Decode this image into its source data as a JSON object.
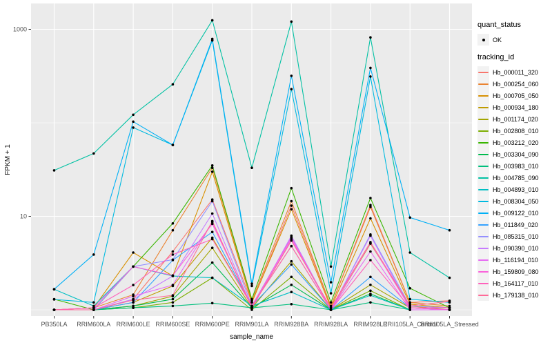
{
  "legend": {
    "quant_status_title": "quant_status",
    "quant_status_items": [
      {
        "label": "OK",
        "symbol": "point"
      }
    ],
    "tracking_id_title": "tracking_id",
    "key_fill": "#F2F2F2"
  },
  "chart_data": {
    "type": "line",
    "title": "",
    "xlabel": "sample_name",
    "ylabel": "FPKM + 1",
    "y_scale": "log10",
    "ylim": [
      0.85,
      1800
    ],
    "y_breaks": [
      10,
      1000
    ],
    "y_minor_breaks": [
      1,
      100
    ],
    "grid": true,
    "legend_position": "right",
    "panel_background": "#EBEBEB",
    "grid_color": "#FFFFFF",
    "tick_label_color": "#4D4D4D",
    "axis_title_color": "#000000",
    "point_color": "#000000",
    "categories": [
      "PB350LA",
      "RRIM600LA",
      "RRIM600LE",
      "RRIM600SE",
      "RRIM600PE",
      "RRIM901LA",
      "RRIM928BA",
      "RRIM928LA",
      "RRIM928LE",
      "RRII105LA_Control",
      "RRII105LA_Stressed"
    ],
    "series": [
      {
        "name": "Hb_000011_320",
        "color": "#F8766D",
        "values": [
          1.0,
          1.0,
          1.3,
          4.2,
          15.1,
          1.2,
          13.0,
          1.1,
          13.2,
          1.2,
          1.25
        ]
      },
      {
        "name": "Hb_000254_060",
        "color": "#EA8331",
        "values": [
          1.0,
          1.05,
          1.45,
          7.1,
          33.0,
          1.25,
          14.5,
          1.1,
          12.6,
          1.2,
          1.1
        ]
      },
      {
        "name": "Hb_000705_050",
        "color": "#D89000",
        "values": [
          1.0,
          1.05,
          4.1,
          2.3,
          30.0,
          1.2,
          11.9,
          1.05,
          9.5,
          1.15,
          1.05
        ]
      },
      {
        "name": "Hb_000934_180",
        "color": "#C09B00",
        "values": [
          1.0,
          1.0,
          1.2,
          1.8,
          5.9,
          1.1,
          4.8,
          1.0,
          5.1,
          1.1,
          1.0
        ]
      },
      {
        "name": "Hb_001174_020",
        "color": "#A3A500",
        "values": [
          1.0,
          1.0,
          1.1,
          1.4,
          4.6,
          1.05,
          3.3,
          1.0,
          1.85,
          1.05,
          1.0
        ]
      },
      {
        "name": "Hb_002808_010",
        "color": "#7CAE00",
        "values": [
          1.0,
          1.0,
          1.05,
          1.2,
          2.2,
          1.0,
          2.25,
          1.0,
          1.6,
          1.0,
          1.0
        ]
      },
      {
        "name": "Hb_003212_020",
        "color": "#39B600",
        "values": [
          1.3,
          1.0,
          2.9,
          8.4,
          35.0,
          1.3,
          20.0,
          1.2,
          15.7,
          1.7,
          1.05
        ]
      },
      {
        "name": "Hb_003304_090",
        "color": "#00BB4E",
        "values": [
          1.0,
          1.0,
          1.1,
          1.3,
          3.2,
          1.05,
          1.85,
          1.0,
          1.48,
          1.0,
          1.0
        ]
      },
      {
        "name": "Hb_003983_010",
        "color": "#00BF7D",
        "values": [
          1.0,
          1.0,
          1.05,
          1.1,
          1.18,
          1.05,
          1.15,
          1.0,
          1.2,
          1.0,
          1.0
        ]
      },
      {
        "name": "Hb_004785_090",
        "color": "#00C1A3",
        "values": [
          31.0,
          47.0,
          122.0,
          258.0,
          1250.0,
          33.0,
          1210.0,
          2.9,
          820.0,
          4.1,
          2.2
        ]
      },
      {
        "name": "Hb_004893_010",
        "color": "#00BFC4",
        "values": [
          1.66,
          1.1,
          2.9,
          2.3,
          2.2,
          1.1,
          1.55,
          1.0,
          1.43,
          1.0,
          1.0
        ]
      },
      {
        "name": "Hb_008304_050",
        "color": "#00BAE0",
        "values": [
          1.29,
          1.2,
          89.0,
          58.0,
          760.0,
          1.8,
          229.0,
          1.5,
          313.0,
          1.3,
          1.2
        ]
      },
      {
        "name": "Hb_009122_010",
        "color": "#00B0F6",
        "values": [
          1.66,
          3.9,
          103.0,
          58.0,
          790.0,
          1.9,
          318.0,
          1.97,
          387.0,
          9.7,
          7.1
        ]
      },
      {
        "name": "Hb_011849_020",
        "color": "#35A2FF",
        "values": [
          1.0,
          1.0,
          1.2,
          3.4,
          6.8,
          1.1,
          3.05,
          1.0,
          2.25,
          1.05,
          1.0
        ]
      },
      {
        "name": "Hb_085315_010",
        "color": "#9590FF",
        "values": [
          1.0,
          1.0,
          2.9,
          3.44,
          14.5,
          1.1,
          6.0,
          1.0,
          6.4,
          1.1,
          1.05
        ]
      },
      {
        "name": "Hb_090390_010",
        "color": "#C77CFF",
        "values": [
          1.0,
          1.0,
          1.3,
          2.3,
          10.7,
          1.05,
          6.2,
          1.0,
          6.2,
          1.05,
          1.0
        ]
      },
      {
        "name": "Hb_116194_010",
        "color": "#E76BF3",
        "values": [
          1.0,
          1.0,
          1.4,
          1.84,
          8.7,
          1.05,
          5.7,
          1.0,
          4.2,
          1.0,
          1.0
        ]
      },
      {
        "name": "Hb_159809_080",
        "color": "#FA62DB",
        "values": [
          1.0,
          1.05,
          2.9,
          2.33,
          8.3,
          1.1,
          5.9,
          1.0,
          5.2,
          1.05,
          1.0
        ]
      },
      {
        "name": "Hb_164117_010",
        "color": "#FF62BC",
        "values": [
          1.0,
          1.05,
          1.84,
          3.9,
          5.7,
          1.1,
          4.8,
          1.0,
          3.4,
          1.05,
          1.05
        ]
      },
      {
        "name": "Hb_179138_010",
        "color": "#FF6A98",
        "values": [
          1.0,
          1.0,
          1.27,
          1.43,
          8.9,
          1.05,
          5.5,
          1.05,
          5.3,
          1.1,
          1.23
        ]
      }
    ]
  }
}
